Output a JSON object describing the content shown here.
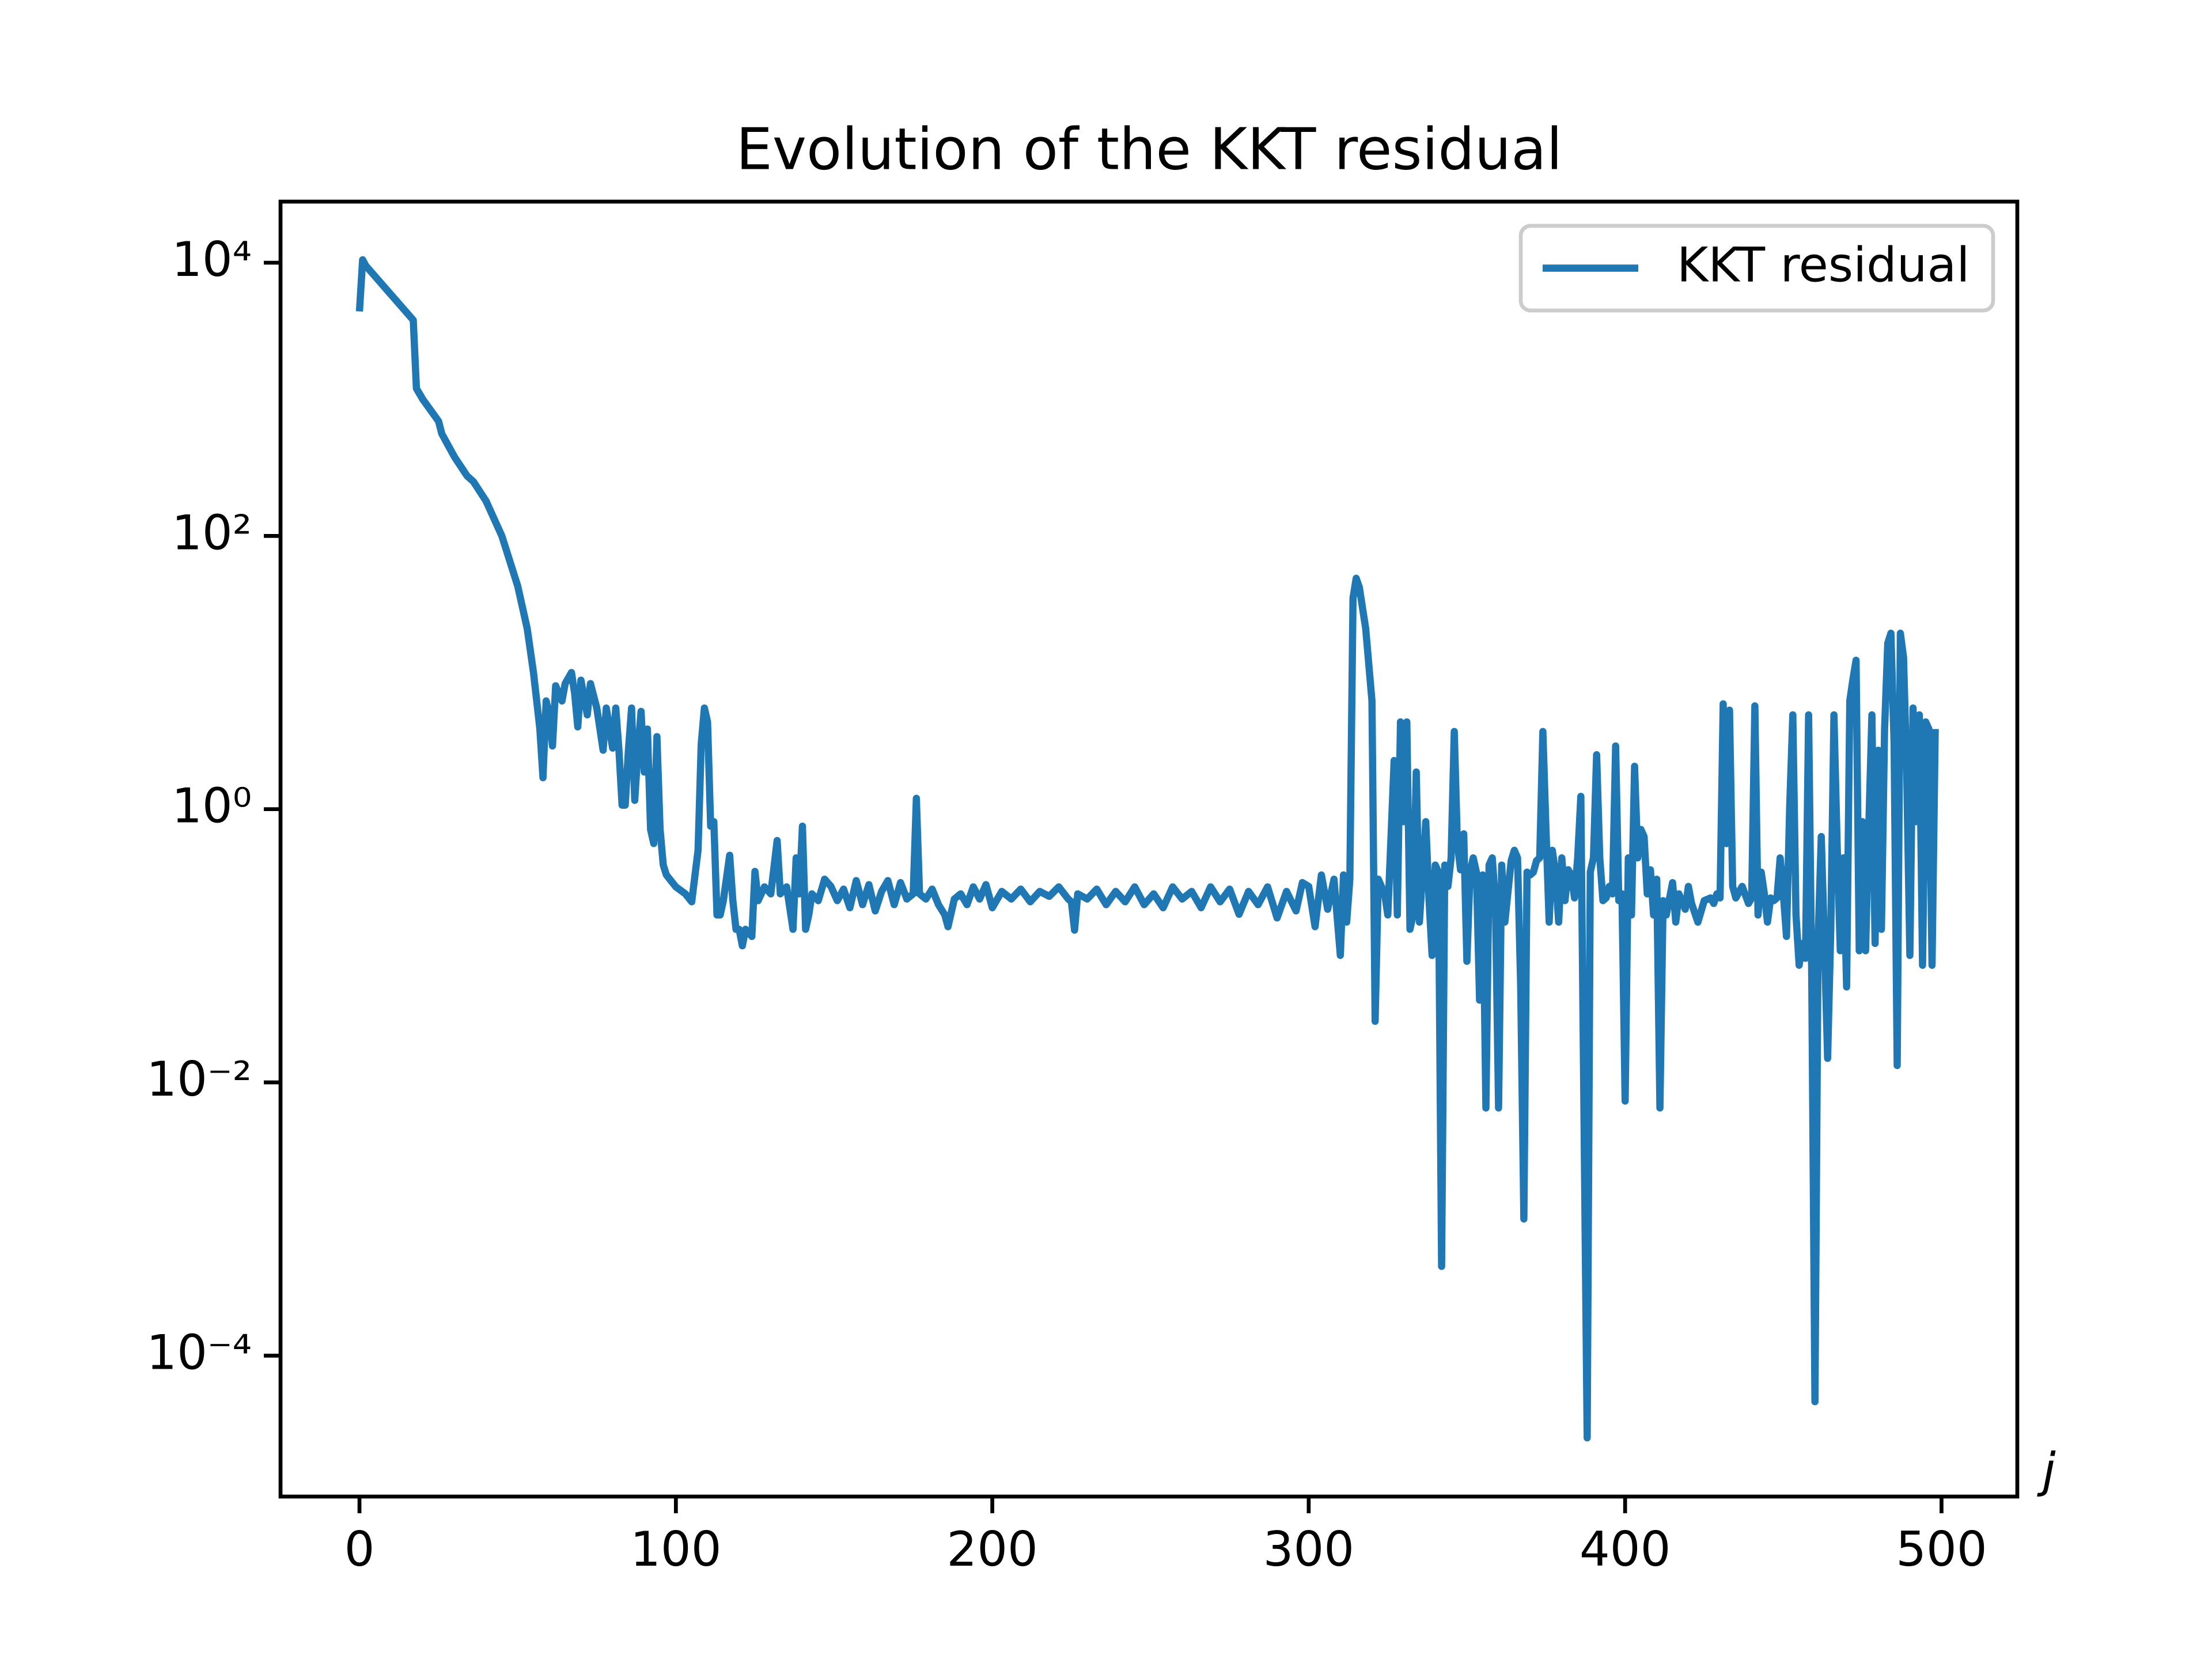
{
  "chart_data": {
    "type": "line",
    "title": "Evolution of the KKT residual",
    "x_label": "j",
    "log_y": true,
    "legend_loc": "upper right",
    "xlim": [
      -24.95,
      523.95
    ],
    "xticks": [
      0,
      100,
      200,
      300,
      400,
      500
    ],
    "ylim": [
      9.3e-06,
      28000
    ],
    "yticks": [
      {
        "value": 10000,
        "label": "10⁴"
      },
      {
        "value": 100,
        "label": "10²"
      },
      {
        "value": 1,
        "label": "10⁰"
      },
      {
        "value": 0.01,
        "label": "10⁻²"
      },
      {
        "value": 0.0001,
        "label": "10⁻⁴"
      }
    ],
    "x": [
      0,
      1,
      2,
      17,
      18,
      20,
      25,
      26,
      30,
      34,
      36,
      40,
      45,
      50,
      53,
      55,
      57,
      58,
      59,
      60,
      61,
      62,
      64,
      65,
      67,
      68,
      69,
      70,
      72,
      73,
      75,
      77,
      78,
      80,
      81,
      82,
      83,
      84,
      85,
      86,
      87,
      88,
      89,
      90,
      91,
      92,
      93,
      94,
      95,
      96,
      97,
      100,
      103,
      105,
      107,
      108,
      109,
      110,
      111,
      112,
      113,
      114,
      115,
      117,
      118,
      119,
      120,
      121,
      122,
      124,
      125,
      126,
      128,
      130,
      132,
      133,
      135,
      137,
      138,
      139,
      140,
      141,
      142,
      143,
      145,
      147,
      149,
      151,
      153,
      155,
      157,
      159,
      161,
      163,
      165,
      167,
      169,
      171,
      173,
      175,
      176,
      177,
      179,
      181,
      183,
      185,
      186,
      188,
      190,
      192,
      194,
      196,
      198,
      200,
      203,
      206,
      209,
      212,
      215,
      218,
      221,
      224,
      225,
      226,
      227,
      230,
      233,
      236,
      239,
      242,
      245,
      248,
      251,
      254,
      257,
      260,
      263,
      266,
      269,
      272,
      275,
      278,
      281,
      284,
      287,
      290,
      293,
      296,
      298,
      300,
      302,
      304,
      306,
      308,
      310,
      311,
      312,
      313,
      314,
      315,
      316,
      318,
      320,
      321,
      322,
      324,
      325,
      327,
      328,
      329,
      330,
      331,
      332,
      333,
      334,
      335,
      336,
      337,
      338,
      339,
      340,
      341,
      342,
      343,
      344,
      345,
      346,
      347,
      348,
      349,
      350,
      351,
      352,
      353,
      354,
      355,
      356,
      357,
      358,
      359,
      360,
      361,
      362,
      364,
      365,
      366,
      367,
      368,
      369,
      370,
      371,
      372,
      373,
      374,
      375,
      376,
      377,
      378,
      379,
      380,
      381,
      382,
      383,
      384,
      385,
      386,
      388,
      389,
      390,
      391,
      392,
      393,
      394,
      395,
      396,
      397,
      398,
      399,
      400,
      401,
      402,
      403,
      404,
      405,
      406,
      407,
      408,
      409,
      410,
      411,
      412,
      413,
      415,
      416,
      417,
      419,
      420,
      421,
      423,
      425,
      427,
      428,
      429,
      430,
      431,
      432,
      433,
      434,
      435,
      437,
      439,
      440,
      441,
      442,
      443,
      444,
      445,
      446,
      447,
      448,
      449,
      450,
      451,
      452,
      453,
      454,
      455,
      456,
      457,
      458,
      459,
      460,
      461,
      462,
      463,
      464,
      465,
      466,
      467,
      468,
      469,
      470,
      471,
      472,
      473,
      474,
      475,
      476,
      477,
      478,
      479,
      480,
      481,
      482,
      483,
      484,
      485,
      486,
      487,
      488,
      489,
      490,
      491,
      492,
      493,
      494,
      495,
      496,
      497,
      498
    ],
    "series": [
      {
        "name": "KKT residual",
        "color": "#1f77b4",
        "values": [
          4400,
          10500,
          9500,
          3800,
          1200,
          1000,
          690,
          560,
          380,
          275,
          250,
          180,
          100,
          43,
          21,
          10,
          3.9,
          1.7,
          6.2,
          4.9,
          2.9,
          8,
          6.2,
          8.3,
          10,
          7,
          4,
          8.8,
          4.9,
          8.3,
          5.5,
          2.7,
          5.5,
          2.8,
          5.5,
          2.7,
          1.07,
          1.07,
          2.7,
          5.5,
          1.16,
          2.7,
          5.2,
          1.87,
          3.86,
          0.71,
          0.56,
          3.4,
          0.71,
          0.39,
          0.33,
          0.27,
          0.24,
          0.21,
          0.5,
          3.0,
          5.5,
          4.35,
          0.75,
          0.81,
          0.168,
          0.168,
          0.214,
          0.46,
          0.214,
          0.132,
          0.132,
          0.1,
          0.132,
          0.117,
          0.35,
          0.214,
          0.27,
          0.24,
          0.59,
          0.24,
          0.27,
          0.132,
          0.44,
          0.24,
          0.75,
          0.132,
          0.168,
          0.24,
          0.214,
          0.307,
          0.272,
          0.214,
          0.26,
          0.19,
          0.3,
          0.2,
          0.28,
          0.18,
          0.25,
          0.3,
          0.2,
          0.29,
          0.22,
          0.24,
          1.2,
          0.24,
          0.22,
          0.26,
          0.2,
          0.168,
          0.138,
          0.22,
          0.24,
          0.2,
          0.27,
          0.22,
          0.28,
          0.19,
          0.25,
          0.22,
          0.26,
          0.21,
          0.25,
          0.23,
          0.27,
          0.22,
          0.21,
          0.13,
          0.24,
          0.22,
          0.26,
          0.2,
          0.25,
          0.21,
          0.27,
          0.2,
          0.24,
          0.19,
          0.27,
          0.22,
          0.25,
          0.19,
          0.27,
          0.21,
          0.26,
          0.17,
          0.25,
          0.2,
          0.27,
          0.16,
          0.25,
          0.18,
          0.29,
          0.272,
          0.138,
          0.33,
          0.185,
          0.307,
          0.085,
          0.33,
          0.149,
          0.307,
          35,
          49,
          42,
          21,
          6.2,
          0.028,
          0.307,
          0.24,
          0.168,
          2.27,
          0.168,
          4.35,
          0.81,
          4.35,
          0.132,
          0.168,
          1.87,
          0.149,
          0.346,
          0.81,
          0.224,
          0.085,
          0.39,
          0.346,
          0.00045,
          0.39,
          0.272,
          0.44,
          3.7,
          0.56,
          0.36,
          0.66,
          0.077,
          0.346,
          0.44,
          0.346,
          0.04,
          0.33,
          0.0065,
          0.39,
          0.44,
          0.214,
          0.0065,
          0.39,
          0.149,
          0.42,
          0.5,
          0.44,
          0.05,
          0.001,
          0.346,
          0.33,
          0.346,
          0.42,
          0.44,
          3.7,
          0.71,
          0.149,
          0.5,
          0.346,
          0.149,
          0.44,
          0.214,
          0.36,
          0.33,
          0.224,
          0.44,
          1.24,
          2.5e-05,
          0.346,
          0.44,
          2.5,
          0.44,
          0.214,
          0.224,
          0.272,
          0.24,
          2.9,
          0.214,
          0.24,
          0.0073,
          0.44,
          0.168,
          2.06,
          0.44,
          0.71,
          0.63,
          0.24,
          0.36,
          0.168,
          0.307,
          0.0065,
          0.214,
          0.168,
          0.29,
          0.149,
          0.24,
          0.185,
          0.272,
          0.204,
          0.149,
          0.214,
          0.224,
          0.204,
          0.24,
          0.224,
          5.9,
          0.56,
          5.3,
          0.272,
          0.224,
          0.272,
          0.204,
          0.224,
          5.7,
          0.168,
          0.346,
          0.24,
          0.149,
          0.224,
          0.214,
          0.224,
          0.44,
          0.24,
          0.117,
          1.02,
          4.9,
          0.168,
          0.072,
          0.104,
          0.081,
          4.9,
          0.057,
          4.6e-05,
          0.11,
          0.63,
          0.104,
          0.015,
          0.132,
          4.9,
          0.56,
          0.092,
          0.44,
          0.05,
          6.2,
          8.9,
          12.3,
          0.092,
          0.81,
          0.092,
          0.71,
          4.9,
          0.104,
          2.7,
          0.132,
          3.86,
          16.4,
          19.4,
          3.03,
          0.0133,
          19.4,
          12.9,
          1.87,
          0.085,
          5.5,
          0.81,
          4.9,
          0.072,
          4.35,
          3.86,
          0.072,
          3.86
        ]
      }
    ]
  }
}
